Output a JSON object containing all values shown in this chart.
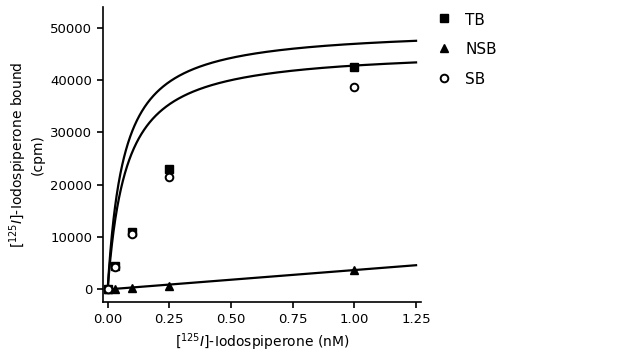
{
  "TB_x": [
    0.0,
    0.03,
    0.075,
    0.125,
    0.25,
    1.0
  ],
  "TB_y": [
    0,
    4500,
    10800,
    11200,
    22500,
    42500
  ],
  "NSB_x": [
    0.0,
    0.03,
    0.075,
    0.125,
    0.25,
    1.0
  ],
  "NSB_y": [
    0,
    100,
    250,
    400,
    700,
    3800
  ],
  "SB_x": [
    0.0,
    0.03,
    0.075,
    0.125,
    0.25,
    1.0
  ],
  "SB_y": [
    0,
    4200,
    10200,
    10700,
    21200,
    38800
  ],
  "TB_Bmax": 50000,
  "TB_Kd": 0.065,
  "NSB_slope": 3700,
  "SB_Bmax": 46000,
  "SB_Kd": 0.075,
  "xlim": [
    -0.02,
    1.27
  ],
  "ylim": [
    -2500,
    54000
  ],
  "xticks": [
    0.0,
    0.25,
    0.5,
    0.75,
    1.0,
    1.25
  ],
  "yticks": [
    0,
    10000,
    20000,
    30000,
    40000,
    50000
  ],
  "legend_TB": "TB",
  "legend_NSB": "NSB",
  "legend_SB": "SB",
  "color": "#000000",
  "background": "#ffffff",
  "xlabel_fontsize": 10,
  "ylabel_fontsize": 10,
  "tick_fontsize": 9.5
}
